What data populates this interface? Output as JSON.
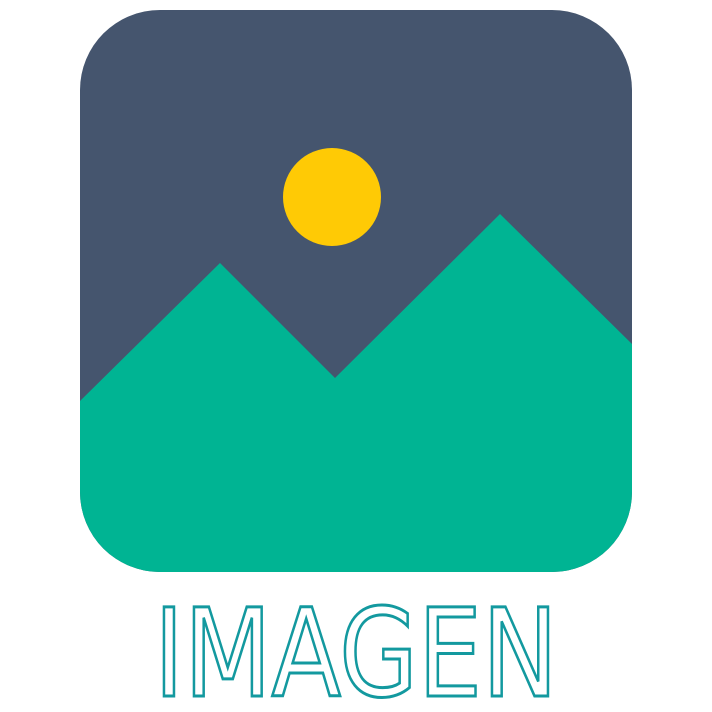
{
  "logo": {
    "caption": "IMAGEN",
    "icon": "picture-icon",
    "colors": {
      "sky": "#45556E",
      "mountains": "#00B493",
      "sun": "#FFCA05",
      "caption": "#13999F",
      "background": "#FFFFFF"
    }
  }
}
